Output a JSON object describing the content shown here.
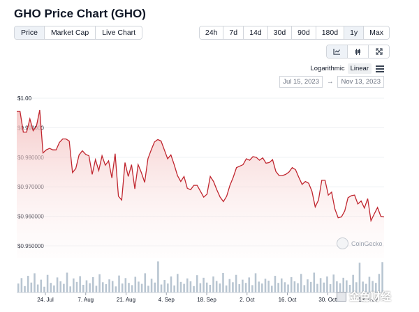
{
  "page": {
    "title": "GHO Price Chart (GHO)"
  },
  "view_tabs": [
    "Price",
    "Market Cap",
    "Live Chart"
  ],
  "range_tabs": [
    "24h",
    "7d",
    "14d",
    "30d",
    "90d",
    "180d",
    "1y",
    "Max"
  ],
  "chart_type_icons": [
    "line-chart-icon",
    "candlestick-chart-icon",
    "expand-icon"
  ],
  "scale": {
    "logarithmic": "Logarithmic",
    "linear": "Linear"
  },
  "date_range": {
    "from": "Jul 15, 2023",
    "arrow": "→",
    "to": "Nov 13, 2023"
  },
  "watermark": {
    "label": "CoinGecko"
  },
  "corner_watermark": {
    "label": "金色财经"
  },
  "colors": {
    "line": "#c0262f",
    "area_top": "#f3c0bf",
    "volume": "#b8c5d1",
    "accent_active": "#eef2f7"
  },
  "chart_data": {
    "type": "line",
    "title": "",
    "xlabel": "",
    "ylabel": "",
    "ylim": [
      0.946,
      1.0
    ],
    "x_tick_labels": [
      "24. Jul",
      "7. Aug",
      "21. Aug",
      "4. Sep",
      "18. Sep",
      "2. Oct",
      "16. Oct",
      "30. Oct",
      "13. Nov"
    ],
    "y_tick_labels": [
      "$1.00",
      "$0.990000",
      "$0.980000",
      "$0.970000",
      "$0.960000",
      "$0.950000"
    ],
    "y_tick_values": [
      1.0,
      0.99,
      0.98,
      0.97,
      0.96,
      0.95
    ],
    "series": [
      {
        "values": [
          0.9955,
          0.9955,
          0.9885,
          0.9885,
          0.993,
          0.989,
          0.9905,
          0.996,
          0.9815,
          0.9825,
          0.983,
          0.9825,
          0.9825,
          0.985,
          0.9862,
          0.9862,
          0.9855,
          0.9748,
          0.9762,
          0.9808,
          0.9822,
          0.981,
          0.9805,
          0.9742,
          0.9792,
          0.9755,
          0.9805,
          0.9773,
          0.9788,
          0.973,
          0.9812,
          0.9668,
          0.9655,
          0.9782,
          0.9735,
          0.9775,
          0.9693,
          0.9775,
          0.9748,
          0.9715,
          0.9795,
          0.9825,
          0.9852,
          0.986,
          0.9855,
          0.9825,
          0.9795,
          0.9808,
          0.9775,
          0.9738,
          0.9718,
          0.9735,
          0.9695,
          0.969,
          0.9705,
          0.9705,
          0.9685,
          0.9665,
          0.9675,
          0.9735,
          0.9718,
          0.969,
          0.9665,
          0.965,
          0.9668,
          0.9705,
          0.9732,
          0.9765,
          0.977,
          0.9775,
          0.9795,
          0.979,
          0.9802,
          0.98,
          0.979,
          0.9798,
          0.978,
          0.9782,
          0.9792,
          0.9752,
          0.9738,
          0.9738,
          0.9742,
          0.975,
          0.9765,
          0.9758,
          0.9732,
          0.9708,
          0.9718,
          0.9712,
          0.9685,
          0.9632,
          0.9655,
          0.9722,
          0.9722,
          0.9672,
          0.9682,
          0.9625,
          0.9595,
          0.9598,
          0.9618,
          0.9663,
          0.967,
          0.9672,
          0.9642,
          0.9652,
          0.9628,
          0.966,
          0.9585,
          0.9608,
          0.963,
          0.96,
          0.9598
        ]
      }
    ],
    "volume": [
      0.28,
      0.45,
      0.2,
      0.52,
      0.31,
      0.6,
      0.25,
      0.4,
      0.18,
      0.55,
      0.3,
      0.22,
      0.47,
      0.35,
      0.27,
      0.62,
      0.19,
      0.44,
      0.33,
      0.51,
      0.24,
      0.38,
      0.29,
      0.48,
      0.21,
      0.57,
      0.32,
      0.26,
      0.41,
      0.36,
      0.19,
      0.53,
      0.28,
      0.45,
      0.3,
      0.23,
      0.49,
      0.34,
      0.27,
      0.6,
      0.21,
      0.43,
      0.31,
      0.97,
      0.25,
      0.39,
      0.28,
      0.5,
      0.22,
      0.58,
      0.33,
      0.27,
      0.44,
      0.35,
      0.2,
      0.54,
      0.29,
      0.46,
      0.31,
      0.24,
      0.5,
      0.36,
      0.28,
      0.61,
      0.22,
      0.42,
      0.32,
      0.55,
      0.26,
      0.4,
      0.3,
      0.47,
      0.23,
      0.6,
      0.34,
      0.28,
      0.43,
      0.37,
      0.21,
      0.52,
      0.3,
      0.44,
      0.32,
      0.25,
      0.48,
      0.35,
      0.29,
      0.58,
      0.23,
      0.41,
      0.33,
      0.62,
      0.27,
      0.45,
      0.31,
      0.5,
      0.26,
      0.56,
      0.35,
      0.29,
      0.46,
      0.38,
      0.24,
      0.55,
      0.32,
      0.93,
      0.34,
      0.27,
      0.49,
      0.36,
      0.3,
      0.58,
      0.95
    ]
  }
}
